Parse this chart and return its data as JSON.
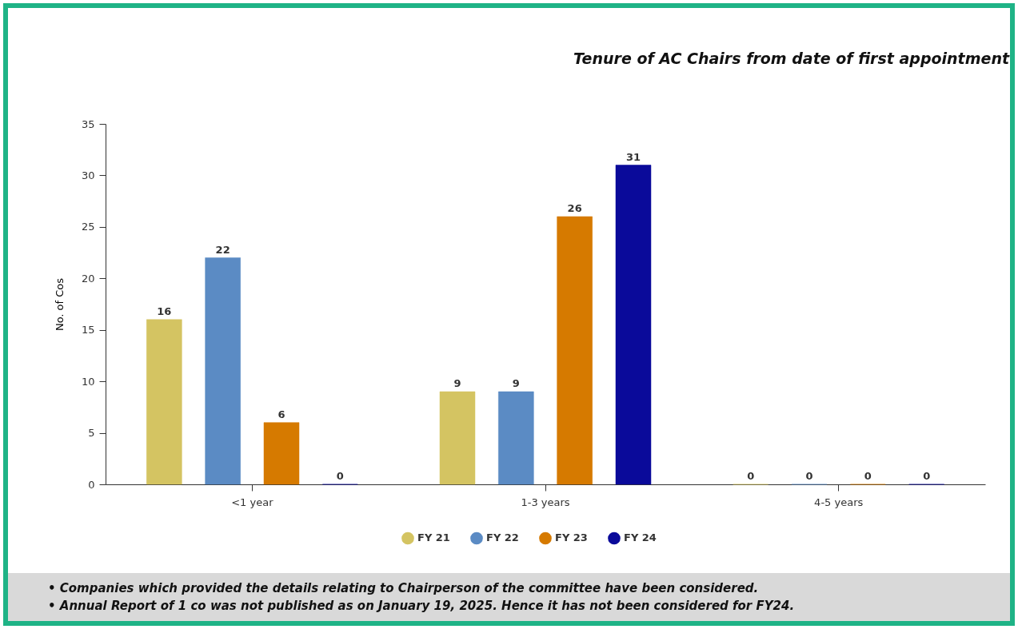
{
  "chart_data": {
    "type": "bar",
    "title": "Tenure of AC Chairs from date of first appointment",
    "ylabel": "No. of Cos",
    "categories": [
      "<1 year",
      "1-3 years",
      "4-5 years"
    ],
    "series": [
      {
        "name": "FY 21",
        "color": "#d4c462",
        "values": [
          16,
          9,
          0
        ]
      },
      {
        "name": "FY 22",
        "color": "#5b8bc4",
        "values": [
          22,
          9,
          0
        ]
      },
      {
        "name": "FY 23",
        "color": "#d67a00",
        "values": [
          6,
          26,
          0
        ]
      },
      {
        "name": "FY 24",
        "color": "#0a0a9a",
        "values": [
          0,
          31,
          0
        ]
      }
    ],
    "ylim": [
      0,
      35
    ],
    "yticks": [
      0,
      5,
      10,
      15,
      20,
      25,
      30,
      35
    ],
    "grid": false,
    "legend": "bottom",
    "data_labels": true,
    "annotations": [
      "• Companies which provided the details relating to Chairperson of the committee have been considered.",
      "• Annual Report of 1 co was not published as on January 19, 2025. Hence it has not been considered for FY24."
    ]
  }
}
